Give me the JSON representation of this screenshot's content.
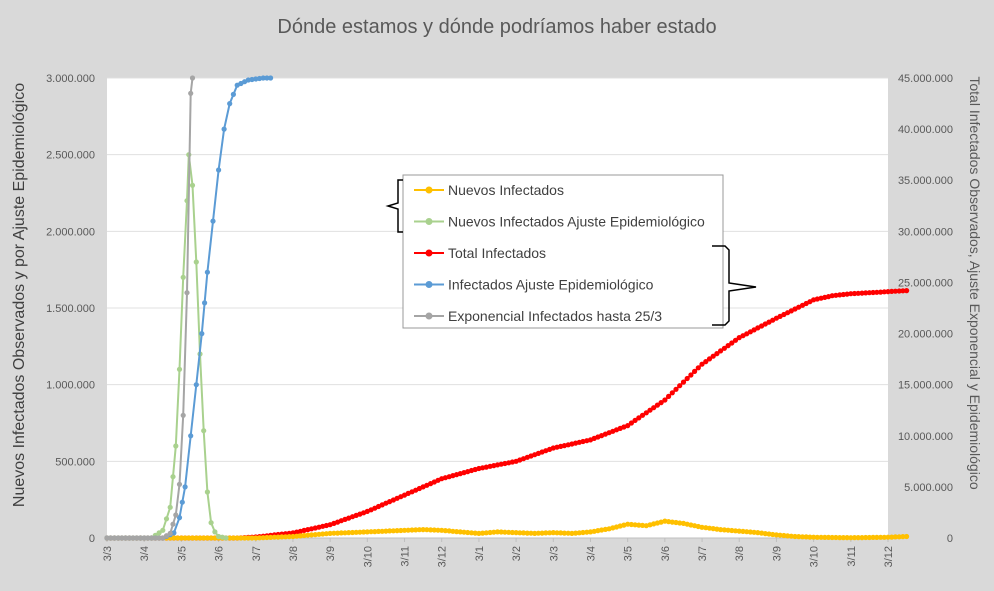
{
  "chart_data": {
    "type": "line",
    "title": "Dónde estamos y dónde podríamos haber estado",
    "ylabel_left": "Nuevos Infectados Observados y por Ajuste Epidemiológico",
    "ylabel_right": "Total Infectados Observados, Ajuste Exponencial y Epidemiológico",
    "xlabel": "",
    "x_ticks": [
      "3/3",
      "3/4",
      "3/5",
      "3/6",
      "3/7",
      "3/8",
      "3/9",
      "3/10",
      "3/11",
      "3/12",
      "3/1",
      "3/2",
      "3/3",
      "3/4",
      "3/5",
      "3/6",
      "3/7",
      "3/8",
      "3/9",
      "3/10",
      "3/11",
      "3/12"
    ],
    "ylim_left": [
      0,
      3000000
    ],
    "ylim_right": [
      0,
      45000000
    ],
    "y_ticks_left": [
      "0",
      "500.000",
      "1.000.000",
      "1.500.000",
      "2.000.000",
      "2.500.000",
      "3.000.000"
    ],
    "y_ticks_right": [
      "0",
      "5.000.000",
      "10.000.000",
      "15.000.000",
      "20.000.000",
      "25.000.000",
      "30.000.000",
      "35.000.000",
      "40.000.000",
      "45.000.000"
    ],
    "grid": true,
    "legend_position": "center",
    "series": [
      {
        "name": "Nuevos Infectados",
        "axis": "left",
        "color": "#ffc000",
        "points": [
          [
            0,
            0
          ],
          [
            4,
            0
          ],
          [
            4.5,
            5000
          ],
          [
            5,
            10000
          ],
          [
            5.5,
            20000
          ],
          [
            6,
            30000
          ],
          [
            6.5,
            35000
          ],
          [
            7,
            40000
          ],
          [
            7.5,
            45000
          ],
          [
            8,
            50000
          ],
          [
            8.5,
            55000
          ],
          [
            9,
            50000
          ],
          [
            9.5,
            40000
          ],
          [
            10,
            30000
          ],
          [
            10.5,
            40000
          ],
          [
            11,
            35000
          ],
          [
            11.5,
            30000
          ],
          [
            12,
            35000
          ],
          [
            12.5,
            30000
          ],
          [
            13,
            40000
          ],
          [
            13.5,
            60000
          ],
          [
            14,
            90000
          ],
          [
            14.5,
            80000
          ],
          [
            15,
            110000
          ],
          [
            15.5,
            95000
          ],
          [
            16,
            70000
          ],
          [
            16.5,
            55000
          ],
          [
            17,
            45000
          ],
          [
            17.5,
            35000
          ],
          [
            18,
            20000
          ],
          [
            18.5,
            10000
          ],
          [
            19,
            5000
          ],
          [
            20,
            2000
          ],
          [
            21,
            5000
          ],
          [
            21.5,
            10000
          ]
        ]
      },
      {
        "name": "Nuevos Infectados Ajuste Epidemiológico",
        "axis": "left",
        "color": "#a9d18e",
        "points": [
          [
            0,
            0
          ],
          [
            1.2,
            0
          ],
          [
            1.5,
            50000
          ],
          [
            1.7,
            200000
          ],
          [
            1.85,
            600000
          ],
          [
            1.95,
            1100000
          ],
          [
            2.05,
            1700000
          ],
          [
            2.15,
            2200000
          ],
          [
            2.2,
            2500000
          ],
          [
            2.3,
            2300000
          ],
          [
            2.4,
            1800000
          ],
          [
            2.5,
            1200000
          ],
          [
            2.6,
            700000
          ],
          [
            2.7,
            300000
          ],
          [
            2.8,
            100000
          ],
          [
            2.9,
            40000
          ],
          [
            3.0,
            10000
          ],
          [
            3.2,
            0
          ]
        ]
      },
      {
        "name": "Total Infectados",
        "axis": "right",
        "color": "#ff0000",
        "points": [
          [
            0,
            0
          ],
          [
            3.5,
            0
          ],
          [
            4,
            100000
          ],
          [
            5,
            500000
          ],
          [
            6,
            1300000
          ],
          [
            7,
            2600000
          ],
          [
            8,
            4200000
          ],
          [
            9,
            5800000
          ],
          [
            10,
            6800000
          ],
          [
            11,
            7500000
          ],
          [
            12,
            8800000
          ],
          [
            13,
            9600000
          ],
          [
            14,
            11000000
          ],
          [
            15,
            13500000
          ],
          [
            16,
            17000000
          ],
          [
            17,
            19600000
          ],
          [
            18,
            21500000
          ],
          [
            19,
            23300000
          ],
          [
            19.5,
            23700000
          ],
          [
            20,
            23900000
          ],
          [
            21,
            24100000
          ],
          [
            21.5,
            24200000
          ]
        ]
      },
      {
        "name": "Infectados Ajuste Epidemiológico",
        "axis": "right",
        "color": "#5b9bd5",
        "points": [
          [
            0,
            0
          ],
          [
            1.5,
            0
          ],
          [
            1.8,
            500000
          ],
          [
            1.95,
            2000000
          ],
          [
            2.1,
            5000000
          ],
          [
            2.25,
            10000000
          ],
          [
            2.4,
            15000000
          ],
          [
            2.55,
            20000000
          ],
          [
            2.7,
            26000000
          ],
          [
            2.85,
            31000000
          ],
          [
            3.0,
            36000000
          ],
          [
            3.15,
            40000000
          ],
          [
            3.3,
            42500000
          ],
          [
            3.5,
            44300000
          ],
          [
            3.8,
            44800000
          ],
          [
            4.0,
            44900000
          ],
          [
            4.2,
            45000000
          ],
          [
            4.4,
            45000000
          ]
        ]
      },
      {
        "name": "Exponencial Infectados hasta 25/3",
        "axis": "left",
        "color": "#a5a5a5",
        "points": [
          [
            0,
            0
          ],
          [
            1.5,
            0
          ],
          [
            1.7,
            30000
          ],
          [
            1.85,
            150000
          ],
          [
            1.95,
            350000
          ],
          [
            2.05,
            800000
          ],
          [
            2.15,
            1600000
          ],
          [
            2.25,
            2900000
          ],
          [
            2.3,
            3000000
          ]
        ]
      }
    ]
  }
}
